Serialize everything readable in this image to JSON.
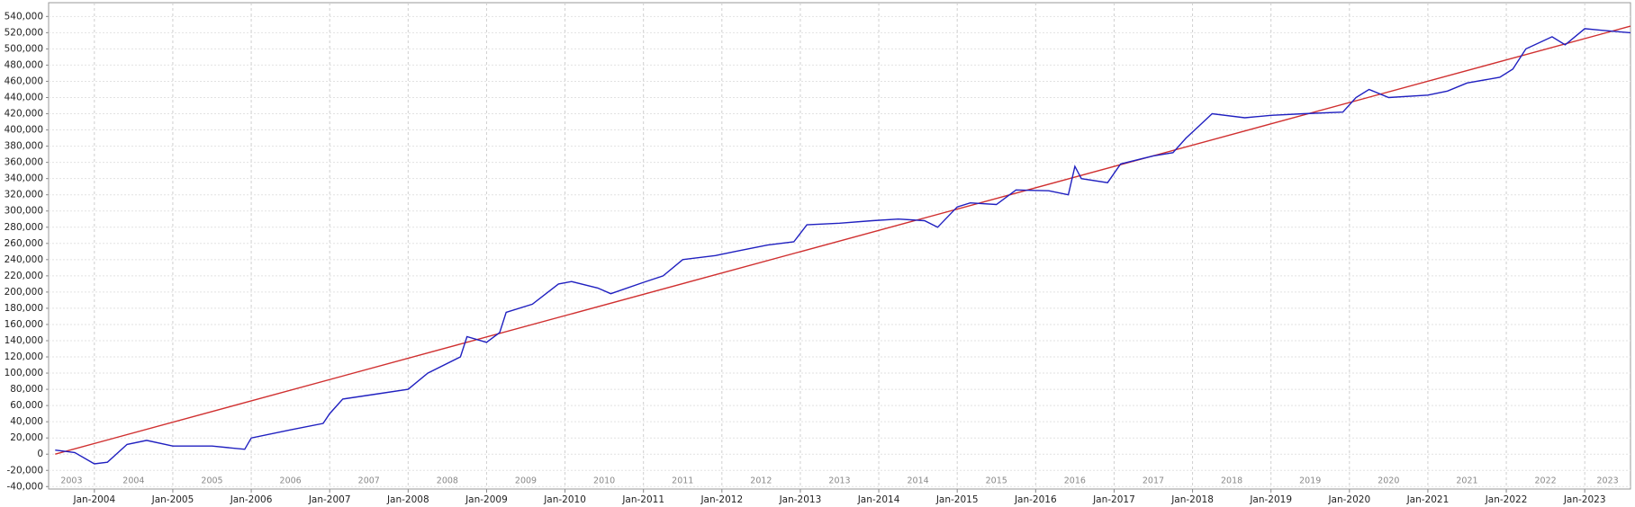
{
  "chart_data": {
    "type": "line",
    "xlim": [
      "2003-06",
      "2023-08"
    ],
    "ylim": [
      -43000,
      557000
    ],
    "grid": true,
    "xticks": [
      {
        "value": "2004-01",
        "label": "Jan-2004"
      },
      {
        "value": "2005-01",
        "label": "Jan-2005"
      },
      {
        "value": "2006-01",
        "label": "Jan-2006"
      },
      {
        "value": "2007-01",
        "label": "Jan-2007"
      },
      {
        "value": "2008-01",
        "label": "Jan-2008"
      },
      {
        "value": "2009-01",
        "label": "Jan-2009"
      },
      {
        "value": "2010-01",
        "label": "Jan-2010"
      },
      {
        "value": "2011-01",
        "label": "Jan-2011"
      },
      {
        "value": "2012-01",
        "label": "Jan-2012"
      },
      {
        "value": "2013-01",
        "label": "Jan-2013"
      },
      {
        "value": "2014-01",
        "label": "Jan-2014"
      },
      {
        "value": "2015-01",
        "label": "Jan-2015"
      },
      {
        "value": "2016-01",
        "label": "Jan-2016"
      },
      {
        "value": "2017-01",
        "label": "Jan-2017"
      },
      {
        "value": "2018-01",
        "label": "Jan-2018"
      },
      {
        "value": "2019-01",
        "label": "Jan-2019"
      },
      {
        "value": "2020-01",
        "label": "Jan-2020"
      },
      {
        "value": "2021-01",
        "label": "Jan-2021"
      },
      {
        "value": "2022-01",
        "label": "Jan-2022"
      },
      {
        "value": "2023-01",
        "label": "Jan-2023"
      }
    ],
    "year_labels": [
      "2003",
      "2004",
      "2005",
      "2006",
      "2007",
      "2008",
      "2009",
      "2010",
      "2011",
      "2012",
      "2013",
      "2014",
      "2015",
      "2016",
      "2017",
      "2018",
      "2019",
      "2020",
      "2021",
      "2022",
      "2023"
    ],
    "yticks": [
      {
        "value": -40000,
        "label": "-40,000"
      },
      {
        "value": -20000,
        "label": "-20,000"
      },
      0,
      {
        "value": 20000,
        "label": "20,000"
      },
      {
        "value": 40000,
        "label": "40,000"
      },
      {
        "value": 60000,
        "label": "60,000"
      },
      {
        "value": 80000,
        "label": "80,000"
      },
      {
        "value": 100000,
        "label": "100,000"
      },
      {
        "value": 120000,
        "label": "120,000"
      },
      {
        "value": 140000,
        "label": "140,000"
      },
      {
        "value": 160000,
        "label": "160,000"
      },
      {
        "value": 180000,
        "label": "180,000"
      },
      {
        "value": 200000,
        "label": "200,000"
      },
      {
        "value": 220000,
        "label": "220,000"
      },
      {
        "value": 240000,
        "label": "240,000"
      },
      {
        "value": 260000,
        "label": "260,000"
      },
      {
        "value": 280000,
        "label": "280,000"
      },
      {
        "value": 300000,
        "label": "300,000"
      },
      {
        "value": 320000,
        "label": "320,000"
      },
      {
        "value": 340000,
        "label": "340,000"
      },
      {
        "value": 360000,
        "label": "360,000"
      },
      {
        "value": 380000,
        "label": "380,000"
      },
      {
        "value": 400000,
        "label": "400,000"
      },
      {
        "value": 420000,
        "label": "420,000"
      },
      {
        "value": 440000,
        "label": "440,000"
      },
      {
        "value": 460000,
        "label": "460,000"
      },
      {
        "value": 480000,
        "label": "480,000"
      },
      {
        "value": 500000,
        "label": "500,000"
      },
      {
        "value": 520000,
        "label": "520,000"
      },
      {
        "value": 540000,
        "label": "540,000"
      }
    ],
    "series": [
      {
        "color": "#2020c0",
        "x": [
          "2003-07",
          "2003-10",
          "2004-01",
          "2004-03",
          "2004-06",
          "2004-09",
          "2005-01",
          "2005-07",
          "2005-12",
          "2006-01",
          "2006-07",
          "2006-12",
          "2007-01",
          "2007-03",
          "2007-08",
          "2008-01",
          "2008-04",
          "2008-09",
          "2008-10",
          "2009-01",
          "2009-03",
          "2009-04",
          "2009-08",
          "2009-12",
          "2010-02",
          "2010-06",
          "2010-08",
          "2011-01",
          "2011-04",
          "2011-07",
          "2011-12",
          "2012-03",
          "2012-08",
          "2012-12",
          "2013-02",
          "2013-07",
          "2013-12",
          "2014-04",
          "2014-08",
          "2014-10",
          "2015-01",
          "2015-03",
          "2015-07",
          "2015-10",
          "2016-03",
          "2016-06",
          "2016-07",
          "2016-08",
          "2016-12",
          "2017-02",
          "2017-07",
          "2017-10",
          "2017-12",
          "2018-02",
          "2018-04",
          "2018-09",
          "2019-01",
          "2019-06",
          "2019-12",
          "2020-02",
          "2020-04",
          "2020-07",
          "2021-01",
          "2021-04",
          "2021-07",
          "2021-12",
          "2022-02",
          "2022-04",
          "2022-08",
          "2022-10",
          "2023-01",
          "2023-05",
          "2023-08"
        ],
        "values": [
          5000,
          2000,
          -12000,
          -10000,
          12000,
          17000,
          10000,
          10000,
          6000,
          20000,
          30000,
          38000,
          50000,
          68000,
          74000,
          80000,
          100000,
          120000,
          145000,
          138000,
          150000,
          175000,
          185000,
          210000,
          213000,
          205000,
          198000,
          212000,
          220000,
          240000,
          245000,
          250000,
          258000,
          262000,
          283000,
          285000,
          288000,
          290000,
          288000,
          280000,
          305000,
          310000,
          308000,
          326000,
          325000,
          320000,
          355000,
          340000,
          335000,
          358000,
          368000,
          372000,
          390000,
          405000,
          420000,
          415000,
          418000,
          420000,
          422000,
          440000,
          450000,
          440000,
          443000,
          448000,
          458000,
          465000,
          475000,
          500000,
          515000,
          505000,
          525000,
          522000,
          520000
        ]
      },
      {
        "color": "#d03030",
        "x": [
          "2003-07",
          "2023-08"
        ],
        "values": [
          0,
          528000
        ]
      }
    ]
  }
}
